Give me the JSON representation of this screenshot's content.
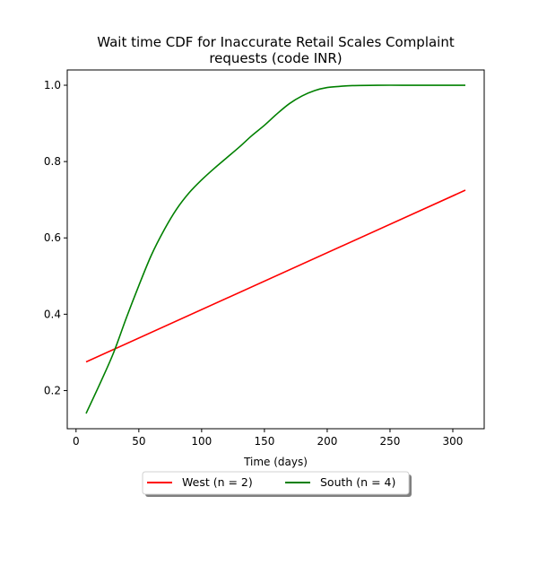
{
  "chart_data": {
    "type": "line",
    "title": [
      "Wait time CDF for Inaccurate Retail Scales Complaint",
      "requests (code INR)"
    ],
    "xlabel": "Time (days)",
    "ylabel": "",
    "xlim": [
      -7,
      325
    ],
    "ylim": [
      0.1,
      1.04
    ],
    "xticks": [
      0,
      50,
      100,
      150,
      200,
      250,
      300
    ],
    "yticks": [
      0.2,
      0.4,
      0.6,
      0.8,
      1.0
    ],
    "xtick_labels": [
      "0",
      "50",
      "100",
      "150",
      "200",
      "250",
      "300"
    ],
    "ytick_labels": [
      "0.2",
      "0.4",
      "0.6",
      "0.8",
      "1.0"
    ],
    "grid": false,
    "legend_position": "below",
    "series": [
      {
        "name": "West (n = 2)",
        "color": "#ff0000",
        "x": [
          8,
          310
        ],
        "y": [
          0.275,
          0.725
        ]
      },
      {
        "name": "South (n = 4)",
        "color": "#008000",
        "x": [
          8,
          20,
          30,
          40,
          50,
          60,
          70,
          80,
          90,
          100,
          110,
          120,
          130,
          140,
          150,
          160,
          170,
          180,
          190,
          200,
          210,
          220,
          240,
          260,
          280,
          310
        ],
        "y": [
          0.14,
          0.225,
          0.3,
          0.39,
          0.475,
          0.555,
          0.62,
          0.675,
          0.718,
          0.752,
          0.782,
          0.81,
          0.838,
          0.868,
          0.895,
          0.925,
          0.952,
          0.972,
          0.986,
          0.994,
          0.997,
          0.999,
          1.0,
          1.0,
          1.0,
          1.0
        ]
      }
    ]
  }
}
